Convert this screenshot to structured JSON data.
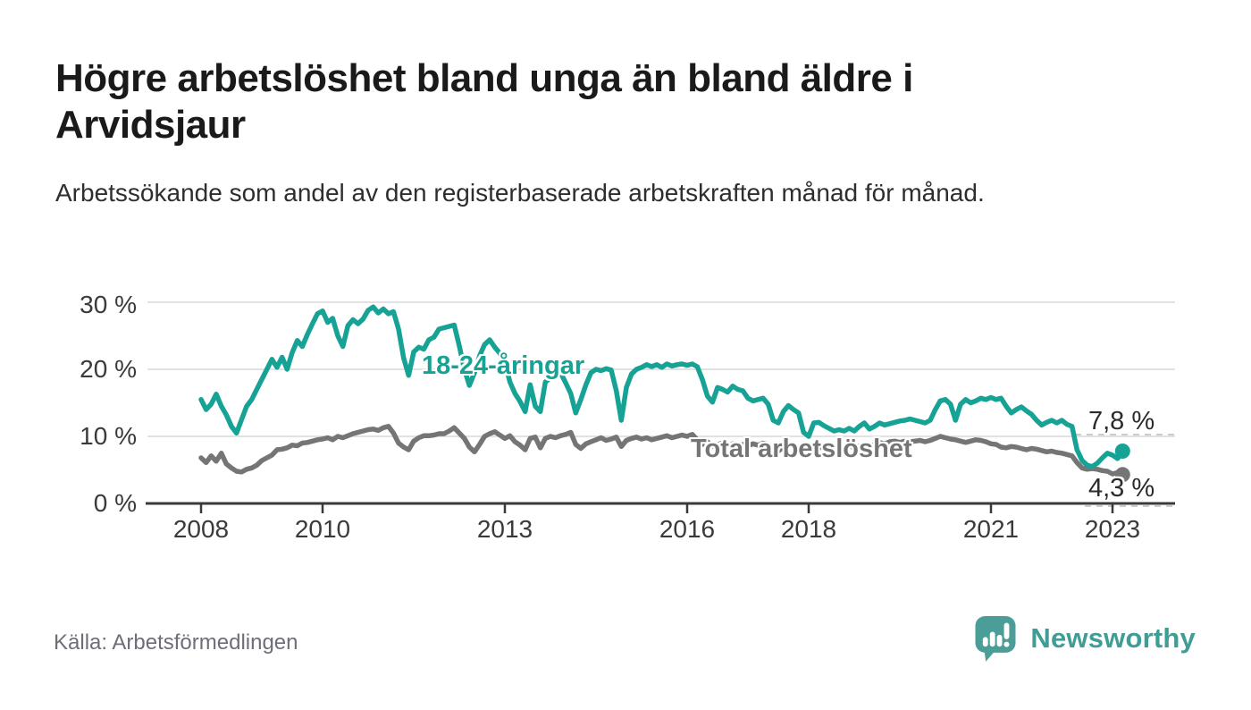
{
  "header": {
    "title": "Högre arbetslöshet bland unga än bland äldre i Arvidsjaur",
    "subtitle": "Arbetssökande som andel av den registerbaserade arbetskraften månad för månad."
  },
  "footer": {
    "source": "Källa: Arbetsförmedlingen",
    "brand_name": "Newsworthy"
  },
  "colors": {
    "accent_teal": "#16a294",
    "series_gray": "#757575",
    "axis": "#3a3a3a",
    "grid": "#d9d9d9",
    "dashed_leader": "#cccccc",
    "logo_teal": "#4b9e97"
  },
  "chart_data": {
    "type": "line",
    "title": "Högre arbetslöshet bland unga än bland äldre i Arvidsjaur",
    "subtitle": "Arbetssökande som andel av den registerbaserade arbetskraften månad för månad.",
    "grid": "horizontal",
    "legend": "inline-labels",
    "x_axis": {
      "start_year": 2008,
      "end_year_fraction": 2023.17,
      "frequency": "monthly",
      "tick_labels": [
        "2008",
        "2010",
        "2013",
        "2016",
        "2018",
        "2021",
        "2023"
      ],
      "tick_years": [
        2008,
        2010,
        2013,
        2016,
        2018,
        2021,
        2023
      ]
    },
    "y_axis": {
      "unit": "%",
      "tick_labels": [
        "0 %",
        "10 %",
        "20 %",
        "30 %"
      ],
      "tick_values": [
        0,
        10,
        20,
        30
      ],
      "range": [
        0,
        31
      ]
    },
    "series": [
      {
        "name": "Total arbetslöshet",
        "color": "#757575",
        "end_label": "4,3 %",
        "last_value": 4.3,
        "values": [
          6.8,
          6.1,
          7.1,
          6.3,
          7.5,
          5.9,
          5.3,
          4.8,
          4.7,
          5.1,
          5.3,
          5.7,
          6.4,
          6.8,
          7.2,
          8.0,
          8.1,
          8.3,
          8.7,
          8.6,
          9.0,
          9.1,
          9.3,
          9.5,
          9.6,
          9.8,
          9.5,
          10.0,
          9.8,
          10.1,
          10.4,
          10.6,
          10.8,
          11.0,
          11.1,
          10.9,
          11.3,
          11.5,
          10.5,
          9.0,
          8.4,
          8.0,
          9.3,
          9.8,
          10.1,
          10.1,
          10.2,
          10.4,
          10.4,
          10.8,
          11.3,
          10.5,
          9.7,
          8.4,
          7.7,
          8.8,
          10.0,
          10.4,
          10.7,
          10.2,
          9.7,
          10.1,
          9.2,
          8.7,
          8.0,
          9.7,
          9.9,
          8.3,
          9.7,
          10.0,
          9.8,
          10.1,
          10.3,
          10.6,
          8.8,
          8.2,
          8.9,
          9.2,
          9.5,
          9.8,
          9.4,
          9.6,
          9.9,
          8.5,
          9.4,
          9.7,
          9.9,
          9.6,
          9.8,
          9.5,
          9.7,
          9.9,
          10.1,
          9.8,
          10.0,
          10.2,
          10.0,
          10.3,
          9.5,
          8.8,
          9.2,
          8.5,
          8.8,
          9.0,
          8.7,
          8.9,
          8.6,
          8.8,
          8.6,
          8.9,
          8.7,
          9.0,
          8.8,
          8.2,
          7.8,
          8.4,
          8.8,
          8.5,
          8.3,
          7.9,
          7.6,
          8.0,
          8.4,
          8.2,
          8.0,
          8.3,
          8.1,
          8.4,
          8.6,
          8.3,
          8.6,
          8.8,
          8.8,
          8.6,
          9.1,
          8.9,
          9.2,
          9.3,
          9.1,
          9.3,
          9.2,
          9.3,
          9.4,
          9.2,
          9.4,
          9.7,
          10.0,
          9.8,
          9.6,
          9.5,
          9.3,
          9.1,
          9.3,
          9.5,
          9.4,
          9.2,
          8.9,
          8.8,
          8.4,
          8.3,
          8.5,
          8.4,
          8.2,
          8.0,
          8.2,
          8.1,
          7.9,
          7.7,
          7.8,
          7.6,
          7.5,
          7.3,
          7.1,
          6.1,
          5.3,
          5.1,
          5.2,
          5.1,
          4.9,
          4.8,
          4.4,
          4.6,
          4.3
        ]
      },
      {
        "name": "18-24-åringar",
        "color": "#16a294",
        "end_label": "7,8 %",
        "last_value": 7.8,
        "values": [
          15.5,
          14.0,
          14.8,
          16.3,
          14.5,
          13.2,
          11.5,
          10.5,
          12.5,
          14.5,
          15.5,
          17.0,
          18.5,
          20.0,
          21.5,
          20.3,
          21.8,
          20.0,
          22.5,
          24.3,
          23.4,
          25.2,
          26.8,
          28.3,
          28.7,
          27.0,
          27.6,
          25.0,
          23.4,
          26.5,
          27.4,
          26.8,
          27.5,
          28.8,
          29.3,
          28.4,
          29.0,
          28.3,
          28.6,
          26.0,
          21.7,
          19.1,
          22.6,
          23.3,
          23.0,
          24.4,
          24.8,
          26.0,
          26.2,
          26.4,
          26.6,
          23.5,
          20.0,
          17.6,
          19.5,
          22.0,
          23.7,
          24.4,
          23.3,
          22.4,
          21.0,
          18.1,
          16.4,
          15.2,
          13.7,
          17.7,
          14.5,
          13.7,
          18.1,
          18.8,
          19.3,
          19.5,
          18.0,
          16.4,
          13.5,
          15.5,
          17.7,
          19.5,
          20.0,
          19.8,
          20.1,
          19.9,
          16.8,
          12.4,
          17.3,
          19.3,
          20.0,
          20.3,
          20.7,
          20.4,
          20.7,
          20.3,
          20.8,
          20.5,
          20.7,
          20.8,
          20.6,
          20.8,
          20.4,
          18.5,
          16.0,
          15.1,
          17.3,
          17.0,
          16.6,
          17.5,
          17.0,
          16.8,
          15.7,
          15.3,
          15.5,
          15.7,
          14.8,
          12.4,
          12.0,
          13.7,
          14.6,
          14.0,
          13.5,
          10.6,
          10.0,
          12.0,
          12.1,
          11.6,
          11.2,
          10.8,
          11.0,
          10.8,
          11.2,
          10.8,
          11.5,
          12.0,
          11.1,
          11.5,
          12.0,
          11.7,
          11.9,
          12.1,
          12.3,
          12.4,
          12.6,
          12.4,
          12.2,
          12.0,
          12.4,
          14.0,
          15.3,
          15.5,
          14.8,
          12.4,
          14.8,
          15.5,
          15.0,
          15.3,
          15.7,
          15.5,
          15.8,
          15.5,
          15.7,
          14.5,
          13.5,
          14.0,
          14.4,
          13.8,
          13.3,
          12.4,
          11.7,
          12.1,
          12.4,
          12.0,
          12.4,
          11.8,
          11.5,
          8.0,
          6.4,
          5.7,
          5.5,
          6.0,
          6.8,
          7.5,
          7.2,
          6.7,
          7.8
        ]
      }
    ]
  }
}
